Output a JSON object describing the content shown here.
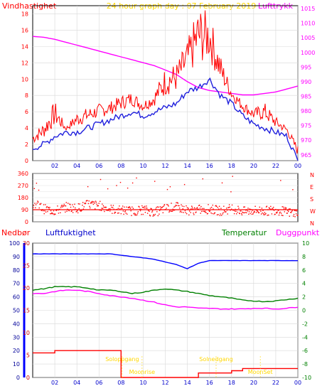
{
  "header": {
    "left_label": "Vindhastighet",
    "title": "24 hour graph day : 07 February 2019",
    "right_label": "Lufttrykk"
  },
  "colors": {
    "background": "#ffffff",
    "plot_background": "#ffffff",
    "wind": "#ff0000",
    "gust": "#ff0000",
    "pressure": "#ff00ff",
    "temperature": "#008000",
    "humidity": "#0000ff",
    "dewpoint": "#ff00ff",
    "rain": "#ff0000",
    "axis_blue": "#0000ff",
    "title_yellow": "#ffd700",
    "sun_label": "#ffd700"
  },
  "chart_data": [
    {
      "id": "wind_pressure",
      "type": "line",
      "x_ticks": [
        "02",
        "04",
        "06",
        "08",
        "10",
        "12",
        "14",
        "16",
        "18",
        "20",
        "22",
        "00"
      ],
      "hours": [
        0,
        1,
        2,
        3,
        4,
        5,
        6,
        7,
        8,
        9,
        10,
        11,
        12,
        13,
        14,
        15,
        16,
        17,
        18,
        19,
        20,
        21,
        22,
        23,
        24
      ],
      "y_left_ticks": [
        "0",
        "2",
        "4",
        "6",
        "8",
        "10",
        "12",
        "14",
        "16",
        "18"
      ],
      "ylim_left": [
        0,
        19
      ],
      "y_right_ticks": [
        "965",
        "970",
        "975",
        "980",
        "985",
        "990",
        "995",
        "1000",
        "1005",
        "1010",
        "1015"
      ],
      "ylim_right": [
        963,
        1016
      ],
      "series": [
        {
          "key": "gust",
          "values": [
            3.0,
            4.2,
            6.5,
            4.0,
            5.5,
            6.0,
            6.5,
            6.8,
            7.5,
            8.0,
            7.0,
            8.0,
            10.5,
            11.0,
            13.5,
            17.0,
            16.5,
            12.0,
            8.5,
            7.0,
            6.0,
            6.5,
            5.0,
            4.0,
            1.5
          ]
        },
        {
          "key": "wind",
          "values": [
            1.5,
            2.0,
            3.0,
            3.5,
            3.5,
            4.0,
            4.5,
            5.0,
            5.5,
            6.0,
            5.5,
            6.0,
            6.5,
            7.0,
            8.5,
            9.0,
            10.0,
            8.0,
            7.0,
            5.5,
            4.5,
            4.0,
            3.5,
            3.0,
            0.0
          ]
        },
        {
          "key": "pressure",
          "values": [
            1005.5,
            1005.2,
            1004.5,
            1003.5,
            1002.5,
            1001.5,
            1000.5,
            999.5,
            998.5,
            997.5,
            996.5,
            995.5,
            994.0,
            992.5,
            990.0,
            988.0,
            987.0,
            986.5,
            986.0,
            985.5,
            985.5,
            986.0,
            986.5,
            987.5,
            988.5
          ]
        }
      ]
    },
    {
      "id": "wind_direction",
      "type": "scatter",
      "y_ticks": [
        "0",
        "45",
        "90",
        "135",
        "180",
        "225",
        "270",
        "315",
        "360"
      ],
      "y_labels_visible": [
        "0",
        "90",
        "180",
        "270",
        "360"
      ],
      "direction_labels": [
        "N",
        "W",
        "S",
        "E",
        "N"
      ],
      "ylim": [
        0,
        360
      ],
      "mean_direction": 90,
      "hours": [
        0,
        1,
        2,
        3,
        4,
        5,
        6,
        7,
        8,
        9,
        10,
        11,
        12,
        13,
        14,
        15,
        16,
        17,
        18,
        19,
        20,
        21,
        22,
        23,
        24
      ],
      "values": [
        140,
        95,
        80,
        110,
        100,
        130,
        120,
        95,
        85,
        80,
        90,
        70,
        100,
        110,
        85,
        90,
        95,
        80,
        100,
        75,
        85,
        80,
        90,
        70,
        60
      ]
    },
    {
      "id": "humidity_temperature",
      "type": "line",
      "x_ticks": [
        "02",
        "04",
        "06",
        "08",
        "10",
        "12",
        "14",
        "16",
        "18",
        "20",
        "22",
        "00"
      ],
      "labels": {
        "rain": "Nedbør",
        "humidity": "Luftfuktighet",
        "temperature": "Temperatur",
        "dewpoint": "Duggpunkt",
        "sunrise": "Soloppgang",
        "sunset": "Solnedgang",
        "moonrise": "Moonrise",
        "moonset": "MoonSet"
      },
      "y_humidity_ticks": [
        "0",
        "10",
        "20",
        "30",
        "40",
        "50",
        "60",
        "70",
        "80",
        "90",
        "100"
      ],
      "y_rain_ticks": [
        "0",
        "5",
        "10",
        "15",
        "20",
        "25",
        "30"
      ],
      "y_temp_ticks": [
        "-10",
        "-8",
        "-6",
        "-4",
        "-2",
        "0",
        "2",
        "4",
        "6",
        "8",
        "10"
      ],
      "ylim_humidity": [
        0,
        100
      ],
      "ylim_rain": [
        0,
        30
      ],
      "ylim_temp": [
        -10,
        10
      ],
      "hours": [
        0,
        1,
        2,
        3,
        4,
        5,
        6,
        7,
        8,
        9,
        10,
        11,
        12,
        13,
        14,
        15,
        16,
        17,
        18,
        19,
        20,
        21,
        22,
        23,
        24
      ],
      "series": [
        {
          "key": "humidity",
          "values": [
            92,
            92,
            92,
            92,
            92,
            92,
            92,
            92,
            91,
            90,
            89,
            88,
            86,
            84,
            81,
            85,
            87,
            87,
            87,
            87,
            87,
            87,
            87,
            87,
            87
          ]
        },
        {
          "key": "temperature",
          "values": [
            3.0,
            3.2,
            3.5,
            3.5,
            3.5,
            3.3,
            3.0,
            3.0,
            2.8,
            2.5,
            2.7,
            3.0,
            3.2,
            3.0,
            2.8,
            2.5,
            2.2,
            2.0,
            1.8,
            1.5,
            1.4,
            1.3,
            1.4,
            1.6,
            1.8
          ]
        },
        {
          "key": "dewpoint",
          "values": [
            2.5,
            2.5,
            2.8,
            3.0,
            3.0,
            2.8,
            2.5,
            2.2,
            2.0,
            1.8,
            1.5,
            1.2,
            0.8,
            0.5,
            0.5,
            0.3,
            0.3,
            0.2,
            0.2,
            0.2,
            0.3,
            0.3,
            0.2,
            0.3,
            0.5
          ]
        },
        {
          "key": "rain",
          "values": [
            5.5,
            5.5,
            6.0,
            6.0,
            6.0,
            6.0,
            6.0,
            6.0,
            0,
            0,
            0,
            0,
            0,
            0,
            0,
            1.0,
            1.0,
            1.0,
            1.5,
            2.0,
            2.0,
            2.0,
            2.0,
            2.0,
            2.0
          ]
        }
      ],
      "markers": [
        {
          "key": "sunrise",
          "hour": 8.1
        },
        {
          "key": "sunset",
          "hour": 16.6
        },
        {
          "key": "moonrise",
          "hour": 9.9
        },
        {
          "key": "moonset",
          "hour": 20.6
        }
      ]
    }
  ]
}
